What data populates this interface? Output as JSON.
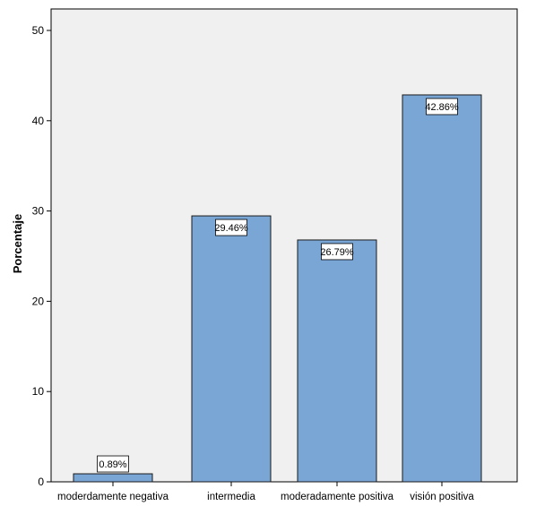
{
  "chart_data": {
    "type": "bar",
    "categories": [
      "moderdamente negativa",
      "intermedia",
      "moderadamente positiva",
      "visión positiva"
    ],
    "values": [
      0.89,
      29.46,
      26.79,
      42.86
    ],
    "data_labels": [
      "0.89%",
      "29.46%",
      "26.79%",
      "42.86%"
    ],
    "title": "",
    "xlabel": "",
    "ylabel": "Porcentaje",
    "ylim": [
      0,
      50
    ],
    "yticks": [
      0,
      10,
      20,
      30,
      40,
      50
    ],
    "grid": false,
    "colors": {
      "plot_background": "#f0f0f0",
      "bar_fill": "#7aa6d6",
      "bar_stroke": "#1a1a1a",
      "axis": "#000000"
    }
  }
}
